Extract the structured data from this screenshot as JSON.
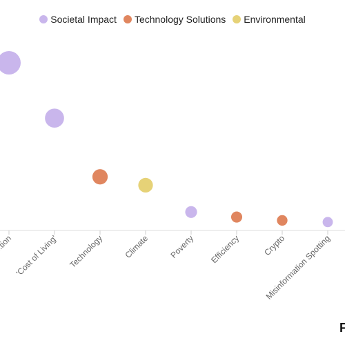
{
  "chart_data": {
    "type": "scatter",
    "categories": [
      "...tion",
      "'Cost of Living'",
      "Technology",
      "Climate",
      "Poverty",
      "Efficiency",
      "Crypto",
      "Misinformation Spotting"
    ],
    "series": [
      {
        "name": "Societal Impact",
        "color": "#c9b6ec"
      },
      {
        "name": "Technology Solutions",
        "color": "#e0865f"
      },
      {
        "name": "Environmental",
        "color": "#e6d277"
      }
    ],
    "points": [
      {
        "category": "...tion",
        "series": "Societal Impact",
        "value": 100
      },
      {
        "category": "'Cost of Living'",
        "series": "Societal Impact",
        "value": 67
      },
      {
        "category": "Technology",
        "series": "Technology Solutions",
        "value": 32
      },
      {
        "category": "Climate",
        "series": "Environmental",
        "value": 27
      },
      {
        "category": "Poverty",
        "series": "Societal Impact",
        "value": 11
      },
      {
        "category": "Efficiency",
        "series": "Technology Solutions",
        "value": 8
      },
      {
        "category": "Crypto",
        "series": "Technology Solutions",
        "value": 6
      },
      {
        "category": "Misinformation Spotting",
        "series": "Societal Impact",
        "value": 5
      }
    ],
    "legend_position": "top-center",
    "grid": false
  },
  "corner_mark": "F"
}
